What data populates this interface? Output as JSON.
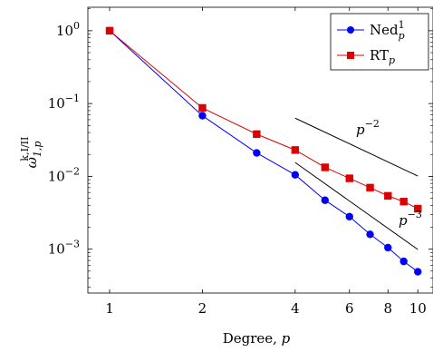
{
  "chart_data": {
    "type": "line",
    "xscale": "log",
    "yscale": "log",
    "xlim": [
      0.85,
      11.2
    ],
    "ylim": [
      0.00025,
      2.1
    ],
    "xticks": [
      {
        "value": 1,
        "label": "1"
      },
      {
        "value": 2,
        "label": "2"
      },
      {
        "value": 4,
        "label": "4"
      },
      {
        "value": 6,
        "label": "6"
      },
      {
        "value": 8,
        "label": "8"
      },
      {
        "value": 10,
        "label": "10"
      }
    ],
    "yticks": [
      {
        "value": 1,
        "base": "10",
        "exp": "0"
      },
      {
        "value": 0.1,
        "base": "10",
        "exp": "−1"
      },
      {
        "value": 0.01,
        "base": "10",
        "exp": "−2"
      },
      {
        "value": 0.001,
        "base": "10",
        "exp": "−3"
      }
    ],
    "xlabel": {
      "main": "Degree, ",
      "var": "p"
    },
    "ylabel": {
      "main": "ω",
      "sub": "1,p",
      "sup": "k,I/II"
    },
    "grid": false,
    "legend_position": "top-right",
    "series": [
      {
        "name": {
          "main": "Ned",
          "sup": "1",
          "sub": "p"
        },
        "color": "#0000ff",
        "marker": "circle",
        "x": [
          1,
          2,
          3,
          4,
          5,
          6,
          7,
          8,
          9,
          10
        ],
        "y": [
          1.0,
          0.068,
          0.021,
          0.0105,
          0.0047,
          0.0028,
          0.0016,
          0.00105,
          0.00068,
          0.00049
        ]
      },
      {
        "name": {
          "main": "RT",
          "sub": "p"
        },
        "color": "#dd0000",
        "marker": "square",
        "x": [
          1,
          2,
          3,
          4,
          5,
          6,
          7,
          8,
          9,
          10
        ],
        "y": [
          1.0,
          0.087,
          0.038,
          0.023,
          0.0133,
          0.0094,
          0.007,
          0.0054,
          0.0045,
          0.0036
        ]
      }
    ],
    "reference_lines": [
      {
        "label": {
          "main": "p",
          "sup": "−2"
        },
        "x": [
          4,
          10
        ],
        "y": [
          0.063,
          0.0101
        ]
      },
      {
        "label": {
          "main": "p",
          "sup": "−3"
        },
        "x": [
          4,
          10
        ],
        "y": [
          0.0155,
          0.00099
        ]
      }
    ]
  }
}
